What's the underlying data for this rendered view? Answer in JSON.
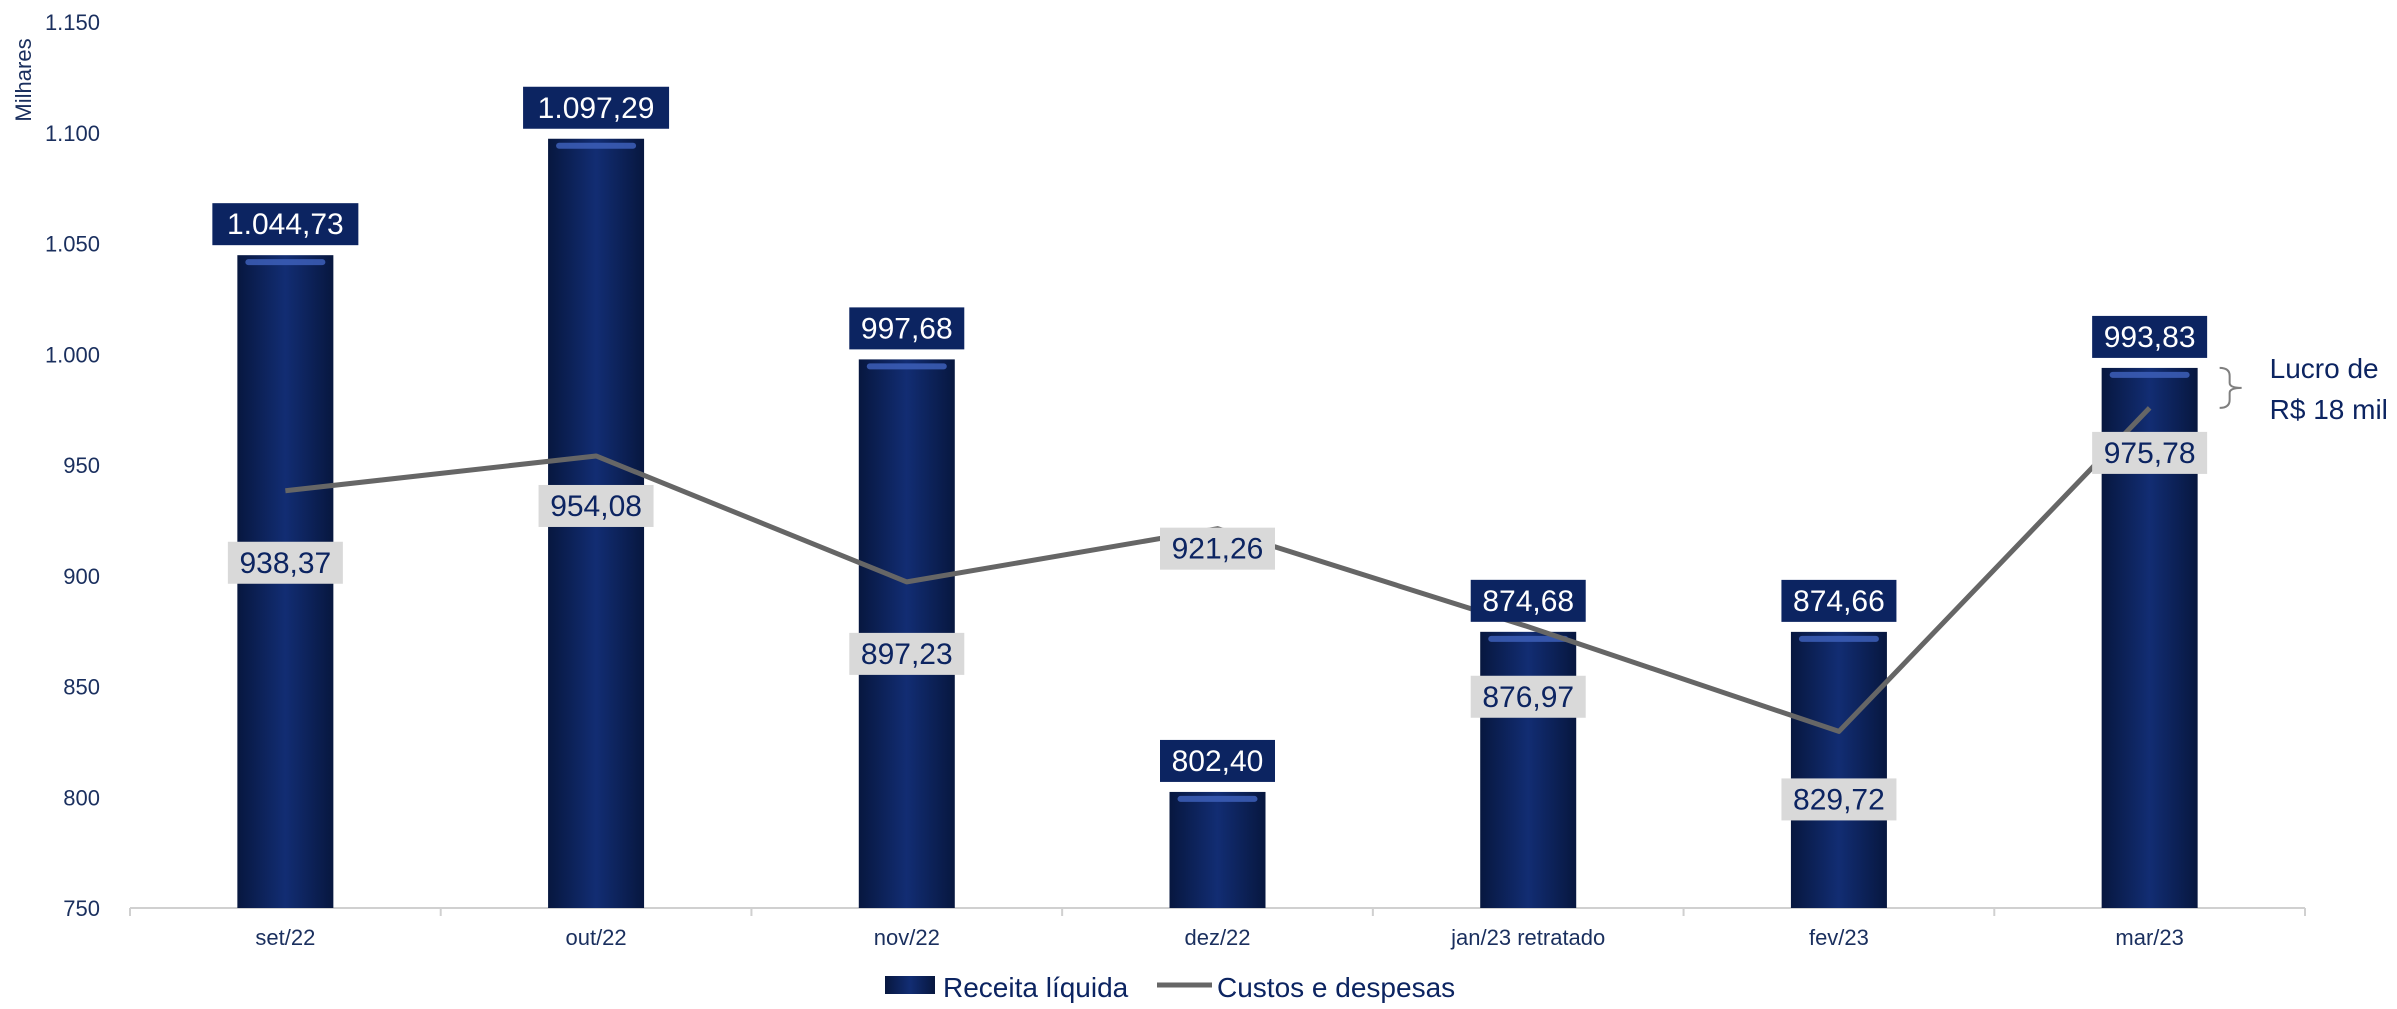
{
  "chart_data": {
    "type": "bar",
    "ylabel": "Milhares",
    "ylim": [
      750,
      1150
    ],
    "yticks": [
      "750",
      "800",
      "850",
      "900",
      "950",
      "1.000",
      "1.050",
      "1.100",
      "1.150"
    ],
    "ytick_values": [
      750,
      800,
      850,
      900,
      950,
      1000,
      1050,
      1100,
      1150
    ],
    "categories": [
      "set/22",
      "out/22",
      "nov/22",
      "dez/22",
      "jan/23 retratado",
      "fev/23",
      "mar/23"
    ],
    "series": [
      {
        "name": "Receita líquida",
        "type": "bar",
        "values": [
          1044.73,
          1097.29,
          997.68,
          802.4,
          874.68,
          874.66,
          993.83
        ],
        "labels": [
          "1.044,73",
          "1.097,29",
          "997,68",
          "802,40",
          "874,68",
          "874,66",
          "993,83"
        ],
        "color": "#0c2461"
      },
      {
        "name": "Custos e despesas",
        "type": "line",
        "values": [
          938.37,
          954.08,
          897.23,
          921.26,
          876.97,
          829.72,
          975.78
        ],
        "labels": [
          "938,37",
          "954,08",
          "897,23",
          "921,26",
          "876,97",
          "829,72",
          "975,78"
        ],
        "color": "#666666"
      }
    ],
    "annotation": {
      "lines": [
        "Lucro de",
        "R$ 18 mil"
      ]
    },
    "legend_placement": "bottom-center",
    "grid": false
  }
}
